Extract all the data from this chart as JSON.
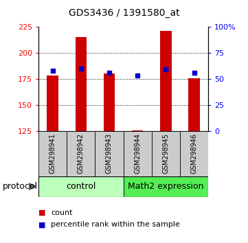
{
  "title": "GDS3436 / 1391580_at",
  "samples": [
    "GSM298941",
    "GSM298942",
    "GSM298943",
    "GSM298944",
    "GSM298945",
    "GSM298946"
  ],
  "bar_heights": [
    178,
    215,
    180,
    126,
    221,
    176
  ],
  "percentile_values": [
    183,
    185,
    181,
    178,
    184,
    181
  ],
  "y_min": 125,
  "y_max": 225,
  "y_ticks_left": [
    125,
    150,
    175,
    200,
    225
  ],
  "y_ticks_right_pct": [
    0,
    25,
    50,
    75,
    100
  ],
  "y_ticks_right_labels": [
    "0",
    "25",
    "50",
    "75",
    "100%"
  ],
  "bar_color": "#cc0000",
  "dot_color": "#0000cc",
  "bar_width": 0.4,
  "group1_label": "control",
  "group2_label": "Math2 expression",
  "group1_indices": [
    0,
    1,
    2
  ],
  "group2_indices": [
    3,
    4,
    5
  ],
  "group1_color": "#bbffbb",
  "group2_color": "#55ee55",
  "protocol_label": "protocol",
  "legend_count": "count",
  "legend_percentile": "percentile rank within the sample",
  "title_fontsize": 10,
  "tick_fontsize": 8,
  "sample_fontsize": 7,
  "group_fontsize": 9,
  "legend_fontsize": 8,
  "dotted_lines": [
    150,
    175,
    200
  ],
  "grid_color": "#888888"
}
